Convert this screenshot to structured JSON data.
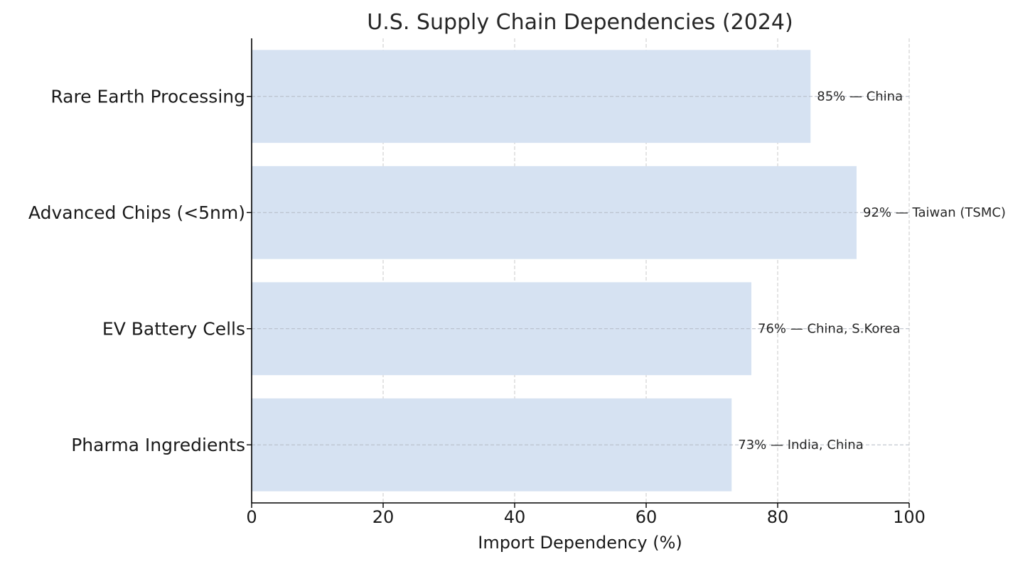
{
  "chart_data": {
    "type": "bar",
    "orientation": "horizontal",
    "title": "U.S. Supply Chain Dependencies (2024)",
    "xlabel": "Import Dependency (%)",
    "ylabel": "",
    "xlim": [
      0,
      100
    ],
    "x_ticks": [
      0,
      20,
      40,
      60,
      80,
      100
    ],
    "x_tick_labels": [
      "0",
      "20",
      "40",
      "60",
      "80",
      "100"
    ],
    "grid": true,
    "categories": [
      "Rare Earth Processing",
      "Advanced Chips (<5nm)",
      "EV Battery Cells",
      "Pharma Ingredients"
    ],
    "values": [
      85,
      92,
      76,
      73
    ],
    "data_labels": [
      "85% — China",
      "92% — Taiwan (TSMC)",
      "76% — China, S.Korea",
      "73% — India, China"
    ],
    "colors": {
      "bar": "#d6e2f2",
      "axis": "#000000",
      "grid": "#c8c8c8",
      "text": "#1a1a1a"
    }
  }
}
